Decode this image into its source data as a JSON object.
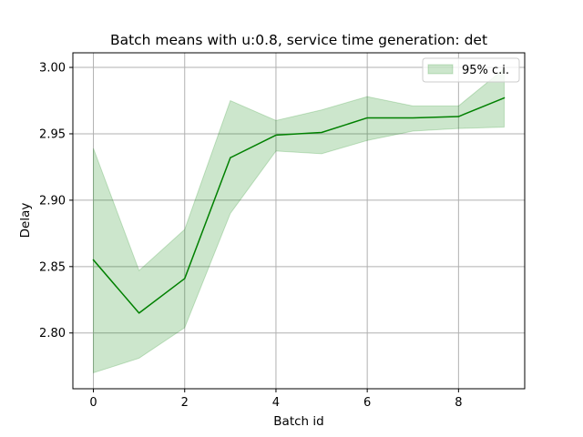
{
  "chart_data": {
    "type": "line",
    "title": "Batch means with u:0.8, service time generation: det",
    "xlabel": "Batch id",
    "ylabel": "Delay",
    "xlim": [
      -0.45,
      9.45
    ],
    "ylim": [
      2.758,
      3.011
    ],
    "xticks": [
      0,
      2,
      4,
      6,
      8
    ],
    "xtick_labels": [
      "0",
      "2",
      "4",
      "6",
      "8"
    ],
    "yticks": [
      2.8,
      2.85,
      2.9,
      2.95,
      3.0
    ],
    "ytick_labels": [
      "2.80",
      "2.85",
      "2.90",
      "2.95",
      "3.00"
    ],
    "grid": true,
    "legend_position": "top-right",
    "x": [
      0,
      1,
      2,
      3,
      4,
      5,
      6,
      7,
      8,
      9
    ],
    "series": [
      {
        "type": "line",
        "values": [
          2.855,
          2.815,
          2.841,
          2.932,
          2.949,
          2.951,
          2.962,
          2.962,
          2.963,
          2.977
        ],
        "color": "#008000"
      },
      {
        "type": "band",
        "name": "95% c.i.",
        "lower": [
          2.77,
          2.781,
          2.804,
          2.89,
          2.937,
          2.935,
          2.945,
          2.952,
          2.954,
          2.955
        ],
        "upper": [
          2.939,
          2.847,
          2.878,
          2.975,
          2.96,
          2.968,
          2.978,
          2.971,
          2.971,
          2.999
        ],
        "color": "#008000",
        "alpha": 0.2
      }
    ]
  },
  "colors": {
    "grid": "#b0b0b0",
    "axes": "#000000",
    "legend_border": "#cccccc"
  }
}
